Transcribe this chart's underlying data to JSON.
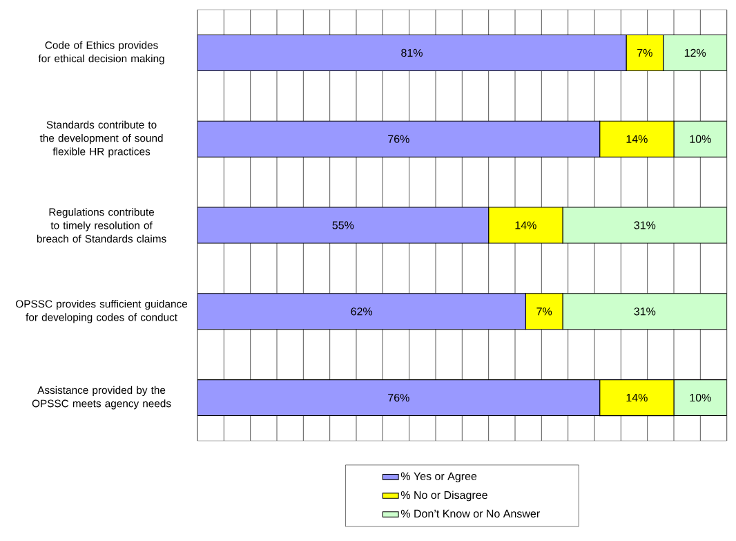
{
  "chart_data": {
    "type": "bar",
    "orientation": "horizontal",
    "stacked": true,
    "categories": [
      "Code of Ethics provides for ethical decision making",
      "Standards contribute to the development of sound flexible HR practices",
      "Regulations contribute to timely resolution of breach of Standards claims",
      "OPSSC provides sufficient guidance for developing codes of conduct",
      "Assistance provided by the OPSSC meets agency needs"
    ],
    "series": [
      {
        "name": "% Yes or Agree",
        "color": "#9999ff",
        "values": [
          81,
          76,
          55,
          62,
          76
        ],
        "value_labels": [
          "81%",
          "76%",
          "55%",
          "62%",
          "76%"
        ]
      },
      {
        "name": "% No or Disagree",
        "color": "#ffff00",
        "values": [
          7,
          14,
          14,
          7,
          14
        ],
        "value_labels": [
          "7%",
          "14%",
          "14%",
          "7%",
          "14%"
        ]
      },
      {
        "name": "% Don’t Know or No Answer",
        "color": "#ccffcc",
        "values": [
          12,
          10,
          31,
          31,
          10
        ],
        "value_labels": [
          "12%",
          "10%",
          "31%",
          "31%",
          "10%"
        ]
      }
    ],
    "grid": "x",
    "legend": "bottom",
    "tick_labels": "y"
  }
}
